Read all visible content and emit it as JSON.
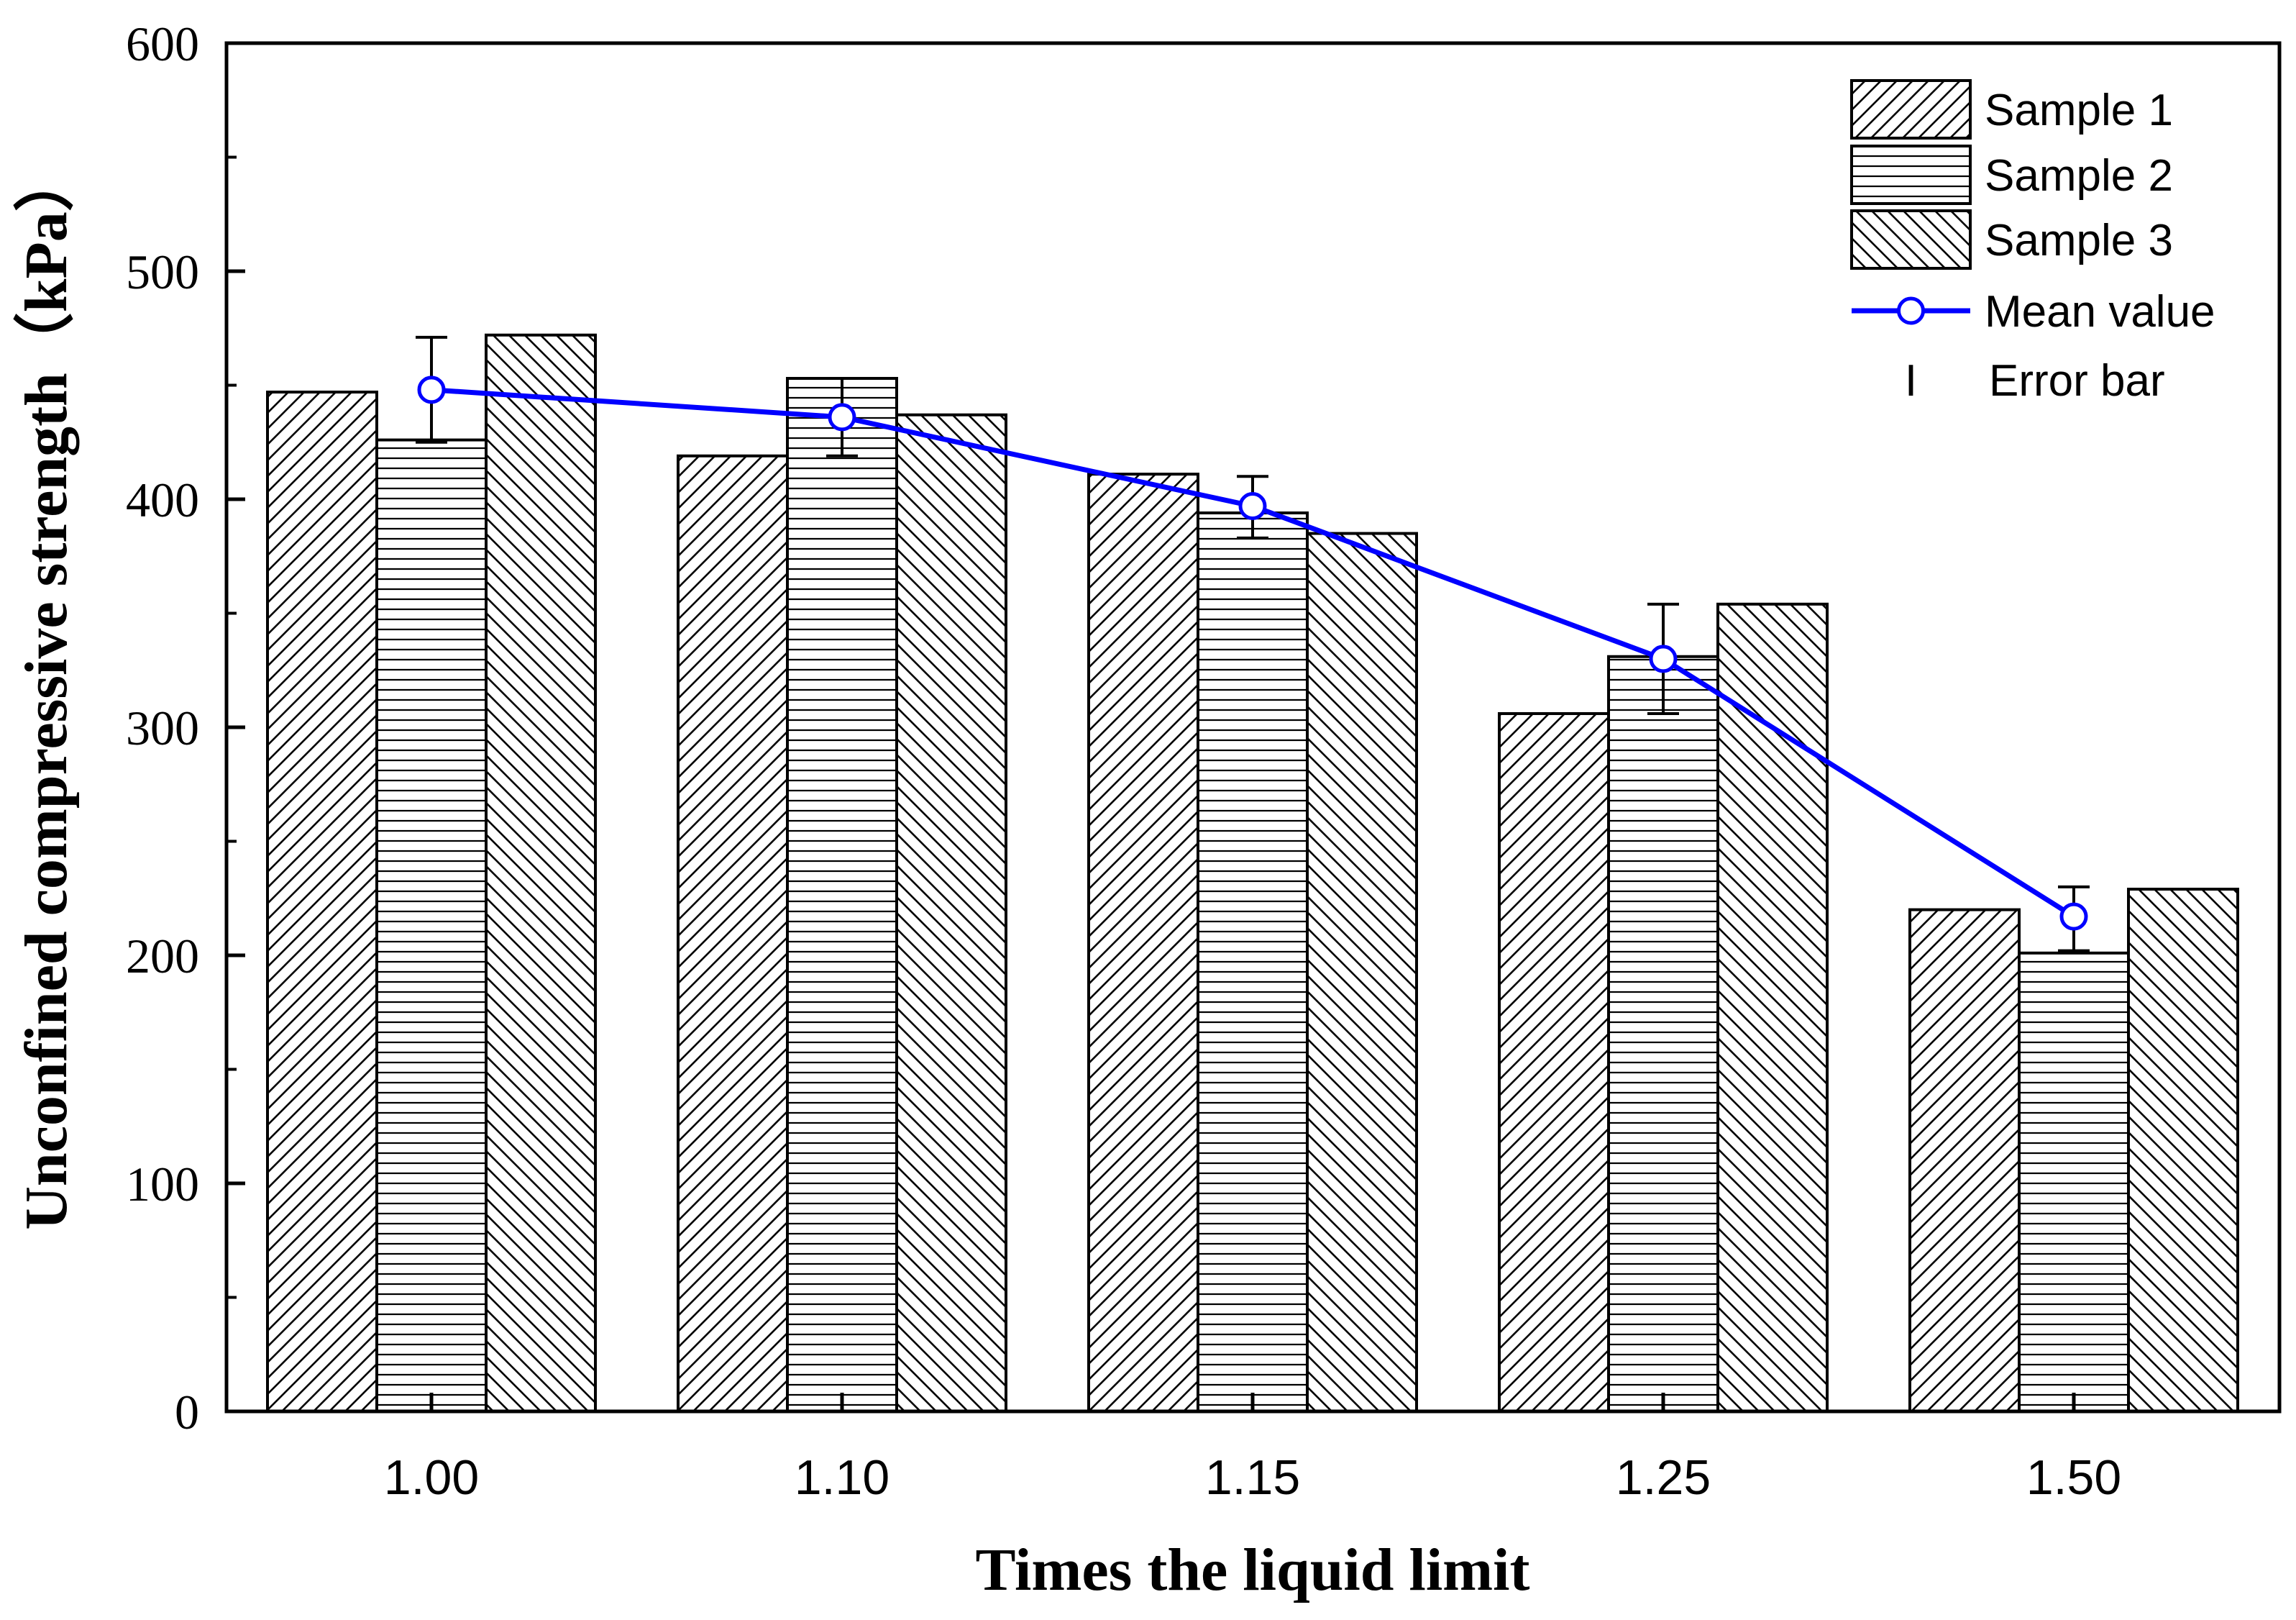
{
  "chart_data": {
    "type": "bar",
    "title": "",
    "xlabel": "Times the liquid limit",
    "ylabel": "Unconfined compressive strength（kPa）",
    "categories": [
      "1.00",
      "1.10",
      "1.15",
      "1.25",
      "1.50"
    ],
    "ylim": [
      0,
      600
    ],
    "yticks": [
      "0",
      "100",
      "200",
      "300",
      "400",
      "500",
      "600"
    ],
    "series": [
      {
        "name": "Sample 1",
        "values": [
          447,
          419,
          411,
          306,
          220
        ],
        "pattern": "diag-right"
      },
      {
        "name": "Sample 2",
        "values": [
          426,
          453,
          394,
          331,
          201
        ],
        "pattern": "horizontal"
      },
      {
        "name": "Sample 3",
        "values": [
          472,
          437,
          385,
          354,
          229
        ],
        "pattern": "diag-left"
      }
    ],
    "mean": {
      "name": "Mean value",
      "values": [
        448,
        436,
        397,
        330,
        217
      ],
      "color": "#0000ff"
    },
    "error": {
      "label_symbol": "I",
      "name": "Error bar",
      "low": [
        425,
        419,
        383,
        306,
        202
      ],
      "high": [
        471,
        453,
        410,
        354,
        230
      ]
    },
    "legend_position": "top-right",
    "grid": false
  }
}
